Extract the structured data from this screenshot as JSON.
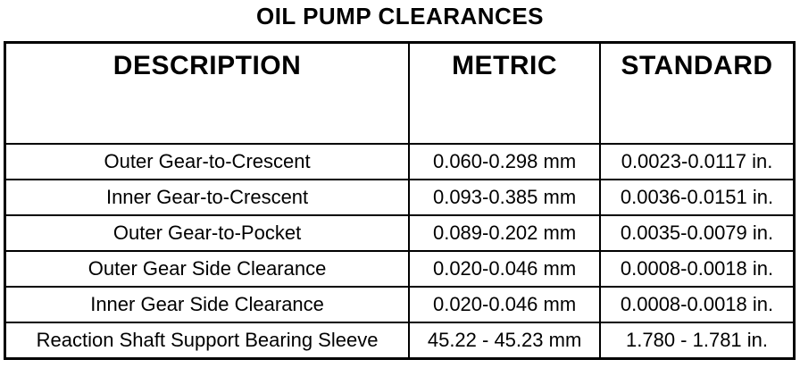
{
  "page": {
    "title": "OIL PUMP CLEARANCES"
  },
  "table": {
    "columns": [
      "DESCRIPTION",
      "METRIC",
      "STANDARD"
    ],
    "rows": [
      {
        "description": "Outer Gear-to-Crescent",
        "metric": "0.060-0.298 mm",
        "standard": "0.0023-0.0117 in."
      },
      {
        "description": "Inner Gear-to-Crescent",
        "metric": "0.093-0.385 mm",
        "standard": "0.0036-0.0151 in."
      },
      {
        "description": "Outer Gear-to-Pocket",
        "metric": "0.089-0.202 mm",
        "standard": "0.0035-0.0079 in."
      },
      {
        "description": "Outer Gear Side Clearance",
        "metric": "0.020-0.046 mm",
        "standard": "0.0008-0.0018 in."
      },
      {
        "description": "Inner Gear Side Clearance",
        "metric": "0.020-0.046 mm",
        "standard": "0.0008-0.0018 in."
      },
      {
        "description": "Reaction Shaft Support Bearing Sleeve",
        "metric": "45.22 - 45.23 mm",
        "standard": "1.780 - 1.781 in."
      }
    ]
  },
  "colors": {
    "border": "#000000",
    "text": "#000000",
    "background": "#ffffff"
  }
}
